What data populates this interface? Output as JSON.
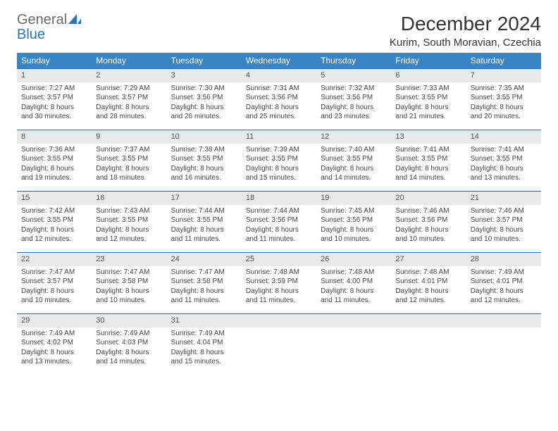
{
  "logo": {
    "general": "General",
    "blue": "Blue"
  },
  "title": "December 2024",
  "subtitle": "Kurim, South Moravian, Czechia",
  "colors": {
    "header_bg": "#3b84c4",
    "header_text": "#ffffff",
    "row_border": "#2a6aa8",
    "daynum_bg": "#e9e9e9",
    "logo_blue": "#2a74bd",
    "logo_gray": "#6a6a6a"
  },
  "weekdays": [
    "Sunday",
    "Monday",
    "Tuesday",
    "Wednesday",
    "Thursday",
    "Friday",
    "Saturday"
  ],
  "weeks": [
    [
      {
        "n": "1",
        "sr": "7:27 AM",
        "ss": "3:57 PM",
        "dl": "8 hours and 30 minutes."
      },
      {
        "n": "2",
        "sr": "7:29 AM",
        "ss": "3:57 PM",
        "dl": "8 hours and 28 minutes."
      },
      {
        "n": "3",
        "sr": "7:30 AM",
        "ss": "3:56 PM",
        "dl": "8 hours and 26 minutes."
      },
      {
        "n": "4",
        "sr": "7:31 AM",
        "ss": "3:56 PM",
        "dl": "8 hours and 25 minutes."
      },
      {
        "n": "5",
        "sr": "7:32 AM",
        "ss": "3:56 PM",
        "dl": "8 hours and 23 minutes."
      },
      {
        "n": "6",
        "sr": "7:33 AM",
        "ss": "3:55 PM",
        "dl": "8 hours and 21 minutes."
      },
      {
        "n": "7",
        "sr": "7:35 AM",
        "ss": "3:55 PM",
        "dl": "8 hours and 20 minutes."
      }
    ],
    [
      {
        "n": "8",
        "sr": "7:36 AM",
        "ss": "3:55 PM",
        "dl": "8 hours and 19 minutes."
      },
      {
        "n": "9",
        "sr": "7:37 AM",
        "ss": "3:55 PM",
        "dl": "8 hours and 18 minutes."
      },
      {
        "n": "10",
        "sr": "7:38 AM",
        "ss": "3:55 PM",
        "dl": "8 hours and 16 minutes."
      },
      {
        "n": "11",
        "sr": "7:39 AM",
        "ss": "3:55 PM",
        "dl": "8 hours and 15 minutes."
      },
      {
        "n": "12",
        "sr": "7:40 AM",
        "ss": "3:55 PM",
        "dl": "8 hours and 14 minutes."
      },
      {
        "n": "13",
        "sr": "7:41 AM",
        "ss": "3:55 PM",
        "dl": "8 hours and 14 minutes."
      },
      {
        "n": "14",
        "sr": "7:41 AM",
        "ss": "3:55 PM",
        "dl": "8 hours and 13 minutes."
      }
    ],
    [
      {
        "n": "15",
        "sr": "7:42 AM",
        "ss": "3:55 PM",
        "dl": "8 hours and 12 minutes."
      },
      {
        "n": "16",
        "sr": "7:43 AM",
        "ss": "3:55 PM",
        "dl": "8 hours and 12 minutes."
      },
      {
        "n": "17",
        "sr": "7:44 AM",
        "ss": "3:55 PM",
        "dl": "8 hours and 11 minutes."
      },
      {
        "n": "18",
        "sr": "7:44 AM",
        "ss": "3:56 PM",
        "dl": "8 hours and 11 minutes."
      },
      {
        "n": "19",
        "sr": "7:45 AM",
        "ss": "3:56 PM",
        "dl": "8 hours and 10 minutes."
      },
      {
        "n": "20",
        "sr": "7:46 AM",
        "ss": "3:56 PM",
        "dl": "8 hours and 10 minutes."
      },
      {
        "n": "21",
        "sr": "7:46 AM",
        "ss": "3:57 PM",
        "dl": "8 hours and 10 minutes."
      }
    ],
    [
      {
        "n": "22",
        "sr": "7:47 AM",
        "ss": "3:57 PM",
        "dl": "8 hours and 10 minutes."
      },
      {
        "n": "23",
        "sr": "7:47 AM",
        "ss": "3:58 PM",
        "dl": "8 hours and 10 minutes."
      },
      {
        "n": "24",
        "sr": "7:47 AM",
        "ss": "3:58 PM",
        "dl": "8 hours and 11 minutes."
      },
      {
        "n": "25",
        "sr": "7:48 AM",
        "ss": "3:59 PM",
        "dl": "8 hours and 11 minutes."
      },
      {
        "n": "26",
        "sr": "7:48 AM",
        "ss": "4:00 PM",
        "dl": "8 hours and 11 minutes."
      },
      {
        "n": "27",
        "sr": "7:48 AM",
        "ss": "4:01 PM",
        "dl": "8 hours and 12 minutes."
      },
      {
        "n": "28",
        "sr": "7:49 AM",
        "ss": "4:01 PM",
        "dl": "8 hours and 12 minutes."
      }
    ],
    [
      {
        "n": "29",
        "sr": "7:49 AM",
        "ss": "4:02 PM",
        "dl": "8 hours and 13 minutes."
      },
      {
        "n": "30",
        "sr": "7:49 AM",
        "ss": "4:03 PM",
        "dl": "8 hours and 14 minutes."
      },
      {
        "n": "31",
        "sr": "7:49 AM",
        "ss": "4:04 PM",
        "dl": "8 hours and 15 minutes."
      },
      null,
      null,
      null,
      null
    ]
  ],
  "labels": {
    "sunrise": "Sunrise:",
    "sunset": "Sunset:",
    "daylight": "Daylight:"
  }
}
